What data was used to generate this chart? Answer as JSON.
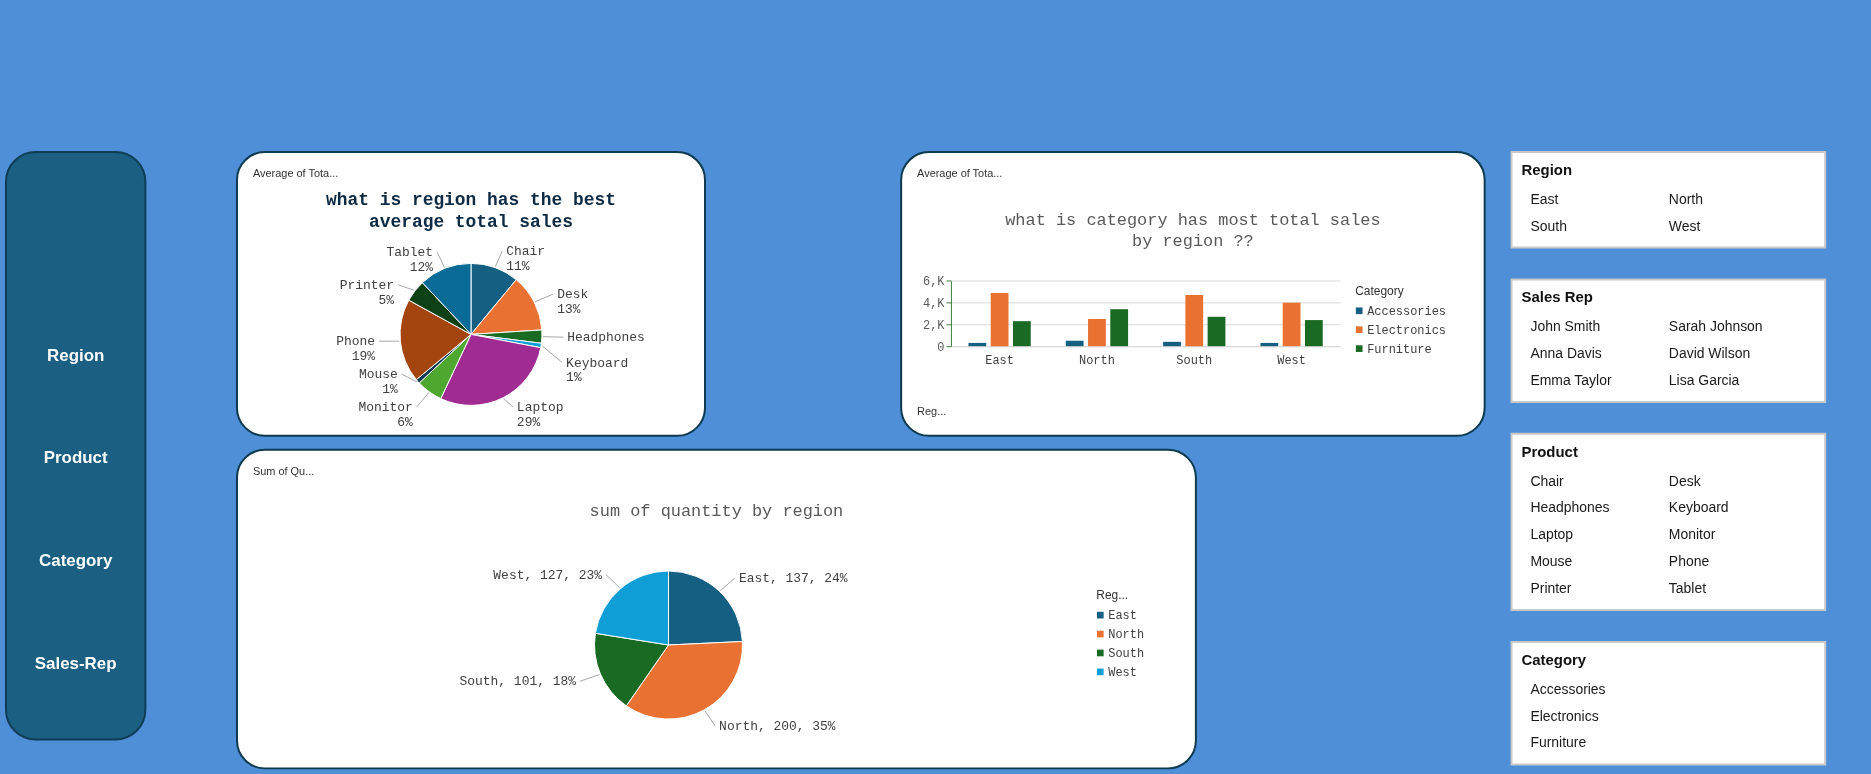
{
  "chart_data": [
    {
      "type": "other",
      "annotations": [
        "Region",
        "Product",
        "Category",
        "Sales-Rep"
      ]
    },
    {
      "type": "pie",
      "title": "what is region has the best average total sales",
      "annotations": [
        "Average of Tota..."
      ],
      "categories": [
        "Chair",
        "Desk",
        "Headphones",
        "Keyboard",
        "Laptop",
        "Monitor",
        "Mouse",
        "Phone",
        "Printer",
        "Tablet"
      ],
      "values": [
        11,
        13,
        3,
        1,
        29,
        6,
        1,
        19,
        5,
        12
      ],
      "colors": [
        "#156082",
        "#e97132",
        "#196b24",
        "#0f9ed5",
        "#a02b93",
        "#4ea72e",
        "#0d3a4f",
        "#a4440f",
        "#0f4116",
        "#0a6b96"
      ],
      "value_labels": [
        "11%",
        "13%",
        null,
        "1%",
        "29%",
        "6%",
        "1%",
        "19%",
        "5%",
        "12%"
      ],
      "legend": false
    },
    {
      "type": "bar",
      "title": "what is category has most total sales by region ??",
      "annotations": [
        "Average of Tota...",
        "Reg..."
      ],
      "categories": [
        "East",
        "North",
        "South",
        "West"
      ],
      "series": [
        {
          "name": "Accessories",
          "color": "#156082",
          "values": [
            0.3,
            0.5,
            0.4,
            0.3
          ]
        },
        {
          "name": "Electronics",
          "color": "#e97132",
          "values": [
            4.9,
            2.5,
            4.7,
            4.0
          ]
        },
        {
          "name": "Furniture",
          "color": "#196b24",
          "values": [
            2.3,
            3.4,
            2.7,
            2.4
          ]
        }
      ],
      "ylim": [
        0,
        6
      ],
      "yticks": [
        0,
        {
          "value": 2,
          "label": "2,K"
        },
        {
          "value": 4,
          "label": "4,K"
        },
        {
          "value": 6,
          "label": "6,K"
        }
      ],
      "grid": "y",
      "legend": "right",
      "legend_title": "Category"
    },
    {
      "type": "pie",
      "title": "sum of quantity by region",
      "annotations": [
        "Sum of Qu..."
      ],
      "categories": [
        "East",
        "North",
        "South",
        "West"
      ],
      "values": [
        137,
        200,
        101,
        127
      ],
      "colors": [
        "#156082",
        "#e97132",
        "#196b24",
        "#0f9ed5"
      ],
      "value_labels": [
        "East, 137, 24%",
        "North, 200, 35%",
        "South, 101, 18%",
        "West, 127, 23%"
      ],
      "legend": "right",
      "legend_title": "Reg..."
    },
    {
      "type": "other",
      "title": "Region",
      "annotations": [
        "East",
        "North",
        "South",
        "West"
      ]
    },
    {
      "type": "other",
      "title": "Sales Rep",
      "annotations": [
        "John Smith",
        "Sarah Johnson",
        "Anna Davis",
        "David Wilson",
        "Emma Taylor",
        "Lisa Garcia"
      ]
    },
    {
      "type": "other",
      "title": "Product",
      "annotations": [
        "Chair",
        "Desk",
        "Headphones",
        "Keyboard",
        "Laptop",
        "Monitor",
        "Mouse",
        "Phone",
        "Printer",
        "Tablet"
      ]
    },
    {
      "type": "other",
      "title": "Category",
      "annotations": [
        "Accessories",
        "Electronics",
        "Furniture"
      ]
    }
  ]
}
